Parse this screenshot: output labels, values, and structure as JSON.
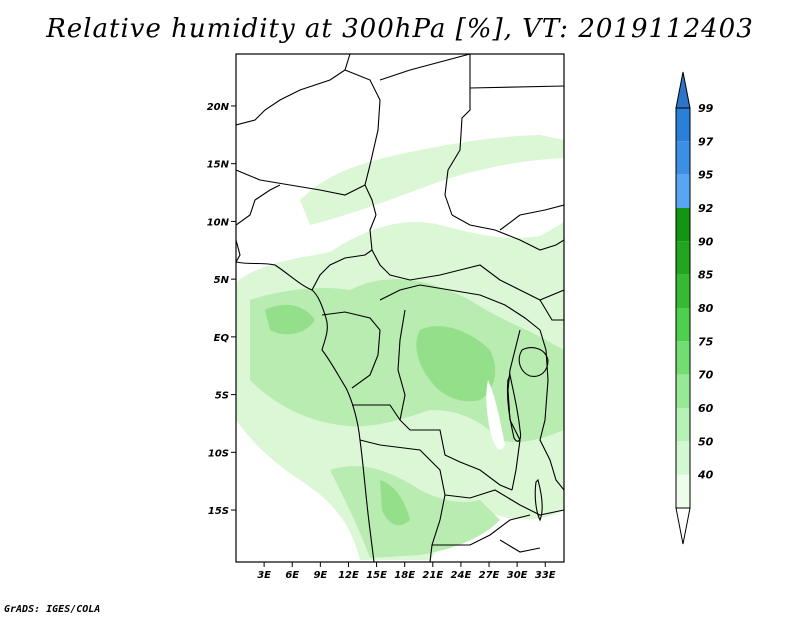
{
  "title": "Relative humidity at 300hPa [%], VT: 2019112403",
  "credit": "GrADS: IGES/COLA",
  "map": {
    "lat_range": [
      -19.5,
      24.5
    ],
    "lon_range": [
      0,
      35
    ]
  },
  "lat_ticks": [
    {
      "label": "20N",
      "lat": 20
    },
    {
      "label": "15N",
      "lat": 15
    },
    {
      "label": "10N",
      "lat": 10
    },
    {
      "label": "5N",
      "lat": 5
    },
    {
      "label": "EQ",
      "lat": 0
    },
    {
      "label": "5S",
      "lat": -5
    },
    {
      "label": "10S",
      "lat": -10
    },
    {
      "label": "15S",
      "lat": -15
    }
  ],
  "lon_ticks": [
    {
      "label": "3E",
      "lon": 3
    },
    {
      "label": "6E",
      "lon": 6
    },
    {
      "label": "9E",
      "lon": 9
    },
    {
      "label": "12E",
      "lon": 12
    },
    {
      "label": "15E",
      "lon": 15
    },
    {
      "label": "18E",
      "lon": 18
    },
    {
      "label": "21E",
      "lon": 21
    },
    {
      "label": "24E",
      "lon": 24
    },
    {
      "label": "27E",
      "lon": 27
    },
    {
      "label": "30E",
      "lon": 30
    },
    {
      "label": "33E",
      "lon": 33
    }
  ],
  "colorbar": {
    "levels": [
      {
        "label": "99",
        "color": "#2a7fd8"
      },
      {
        "label": "97",
        "color": "#3d8fe6"
      },
      {
        "label": "95",
        "color": "#5aa5f2"
      },
      {
        "label": "92",
        "color": "#149414"
      },
      {
        "label": "90",
        "color": "#22a622"
      },
      {
        "label": "85",
        "color": "#36ba36"
      },
      {
        "label": "80",
        "color": "#4fcf4f"
      },
      {
        "label": "75",
        "color": "#72de72"
      },
      {
        "label": "70",
        "color": "#96ea96"
      },
      {
        "label": "60",
        "color": "#b6f2b6"
      },
      {
        "label": "50",
        "color": "#d2f8d2"
      },
      {
        "label": "40",
        "color": "#ecfdec"
      }
    ],
    "top_color": "#2f75c7"
  },
  "colors": {
    "land_outline": "#000000",
    "light_green": "#dcf7d6",
    "mid_green": "#b9ecb0",
    "deep_green": "#94e08a"
  }
}
